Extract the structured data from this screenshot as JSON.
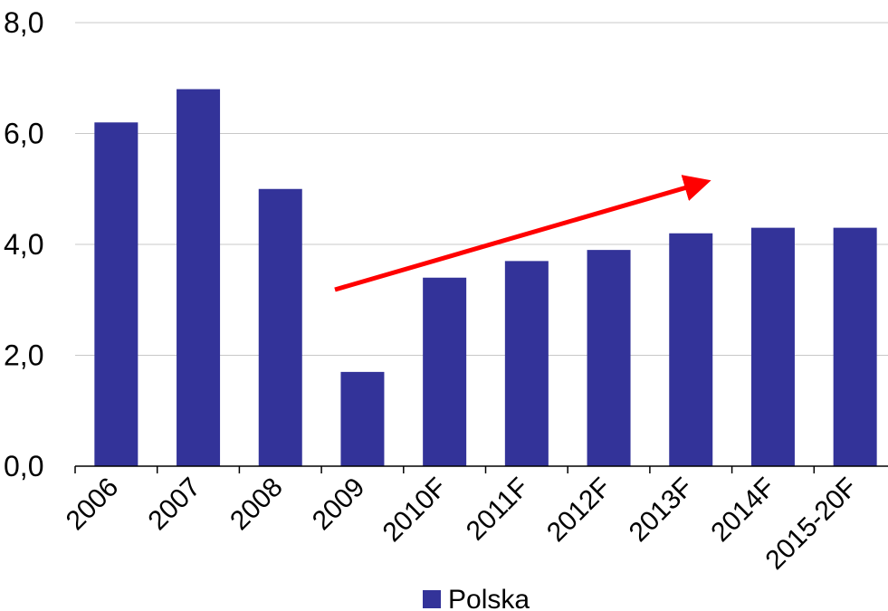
{
  "chart_data": {
    "type": "bar",
    "categories": [
      "2006",
      "2007",
      "2008",
      "2009",
      "2010F",
      "2011F",
      "2012F",
      "2013F",
      "2014F",
      "2015-20F"
    ],
    "series": [
      {
        "name": "Polska",
        "color": "#333399",
        "values": [
          6.2,
          6.8,
          5.0,
          1.7,
          3.4,
          3.7,
          3.9,
          4.2,
          4.3,
          4.3
        ]
      }
    ],
    "ylim": [
      0,
      8
    ],
    "yticks": [
      {
        "value": 0,
        "label": "0,0"
      },
      {
        "value": 2,
        "label": "2,0"
      },
      {
        "value": 4,
        "label": "4,0"
      },
      {
        "value": 6,
        "label": "6,0"
      },
      {
        "value": 8,
        "label": "8,0"
      }
    ],
    "grid": true
  }
}
